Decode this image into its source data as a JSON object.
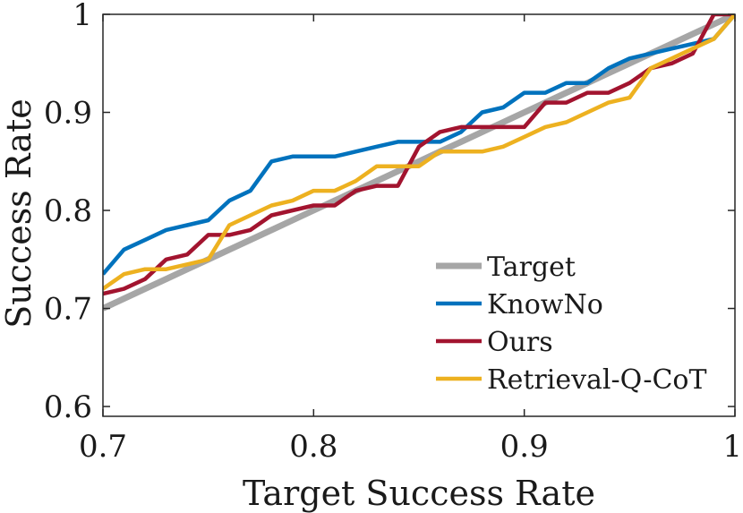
{
  "chart_data": {
    "type": "line",
    "title": "",
    "xlabel": "Target Success Rate",
    "ylabel": "Success Rate",
    "xlim": [
      0.7,
      1.0
    ],
    "ylim": [
      0.59,
      1.0
    ],
    "xticks": [
      0.7,
      0.8,
      0.9,
      1.0
    ],
    "xtick_labels": [
      "0.7",
      "0.8",
      "0.9",
      "1"
    ],
    "yticks": [
      0.6,
      0.7,
      0.8,
      0.9,
      1.0
    ],
    "ytick_labels": [
      "0.6",
      "0.7",
      "0.8",
      "0.9",
      "1"
    ],
    "grid": false,
    "legend_position": "bottom-right",
    "x": [
      0.7,
      0.71,
      0.72,
      0.73,
      0.74,
      0.75,
      0.76,
      0.77,
      0.78,
      0.79,
      0.8,
      0.81,
      0.82,
      0.83,
      0.84,
      0.85,
      0.86,
      0.87,
      0.88,
      0.89,
      0.9,
      0.91,
      0.92,
      0.93,
      0.94,
      0.95,
      0.96,
      0.97,
      0.98,
      0.99,
      1.0
    ],
    "series": [
      {
        "name": "Target",
        "color": "#a6a6a6",
        "values": [
          0.7,
          0.71,
          0.72,
          0.73,
          0.74,
          0.75,
          0.76,
          0.77,
          0.78,
          0.79,
          0.8,
          0.81,
          0.82,
          0.83,
          0.84,
          0.85,
          0.86,
          0.87,
          0.88,
          0.89,
          0.9,
          0.91,
          0.92,
          0.93,
          0.94,
          0.95,
          0.96,
          0.97,
          0.98,
          0.99,
          1.0
        ]
      },
      {
        "name": "KnowNo",
        "color": "#0072bd",
        "values": [
          0.735,
          0.76,
          0.77,
          0.78,
          0.785,
          0.79,
          0.81,
          0.82,
          0.85,
          0.855,
          0.855,
          0.855,
          0.86,
          0.865,
          0.87,
          0.87,
          0.87,
          0.88,
          0.9,
          0.905,
          0.92,
          0.92,
          0.93,
          0.93,
          0.945,
          0.955,
          0.96,
          0.965,
          0.97,
          0.975,
          1.0
        ]
      },
      {
        "name": "Ours",
        "color": "#a2142f",
        "values": [
          0.715,
          0.72,
          0.73,
          0.75,
          0.755,
          0.775,
          0.775,
          0.78,
          0.795,
          0.8,
          0.805,
          0.805,
          0.82,
          0.825,
          0.825,
          0.865,
          0.88,
          0.885,
          0.885,
          0.885,
          0.885,
          0.91,
          0.91,
          0.92,
          0.92,
          0.93,
          0.945,
          0.95,
          0.96,
          1.0,
          1.0
        ]
      },
      {
        "name": "Retrieval-Q-CoT",
        "color": "#edb120",
        "values": [
          0.72,
          0.735,
          0.74,
          0.74,
          0.745,
          0.75,
          0.785,
          0.795,
          0.805,
          0.81,
          0.82,
          0.82,
          0.83,
          0.845,
          0.845,
          0.845,
          0.86,
          0.86,
          0.86,
          0.865,
          0.875,
          0.885,
          0.89,
          0.9,
          0.91,
          0.915,
          0.945,
          0.955,
          0.965,
          0.975,
          1.0
        ]
      }
    ]
  }
}
